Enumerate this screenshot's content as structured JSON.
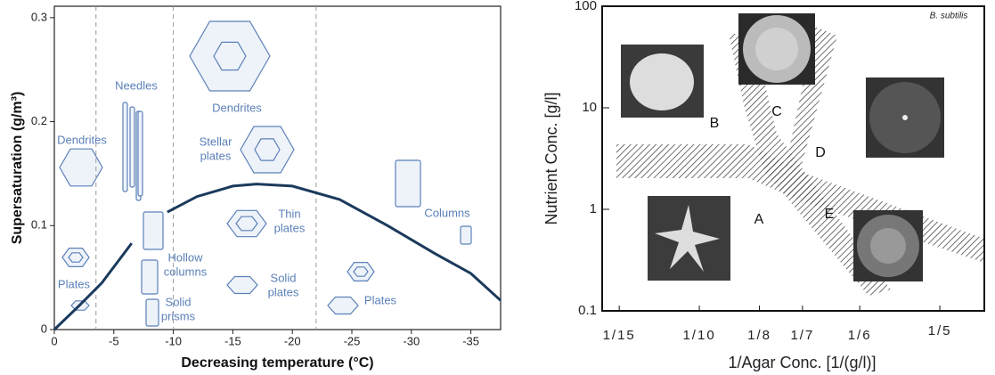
{
  "chart_data": [
    {
      "type": "line",
      "xlabel": "Decreasing temperature (°C)",
      "ylabel": "Supersaturation (g/m³)",
      "xlim": [
        0,
        -37.5
      ],
      "ylim": [
        0,
        0.311
      ],
      "xticks": [
        0,
        -5,
        -10,
        -15,
        -20,
        -25,
        -30,
        -35
      ],
      "yticks": [
        0,
        0.1,
        0.2,
        0.3
      ],
      "dividers": [
        -3.5,
        -10,
        -22
      ],
      "series": [
        {
          "color": "#1b3a5c",
          "x": [
            0,
            -2,
            -4,
            -6.5,
            -8,
            -9.5,
            -12,
            -15,
            -17,
            -20,
            -24,
            -28,
            -32,
            -35,
            -37.5
          ],
          "values": [
            0,
            0.022,
            0.045,
            0.083,
            null,
            0.113,
            0.128,
            0.138,
            0.14,
            0.138,
            0.125,
            0.1,
            0.073,
            0.054,
            0.028
          ]
        }
      ],
      "annotations": [
        [
          "Dendrites"
        ],
        [
          "Needles"
        ],
        [
          "Dendrites"
        ],
        [
          "Stellar",
          "plates"
        ],
        [
          "Plates"
        ],
        [
          "Hollow",
          "columns"
        ],
        [
          "Solid",
          "prisms"
        ],
        [
          "Thin",
          "plates"
        ],
        [
          "Solid",
          "plates"
        ],
        [
          "Columns"
        ],
        [
          "Plates"
        ]
      ],
      "annotation_color": "#5b80b8"
    },
    {
      "type": "morphology-diagram",
      "xlabel": "1/Agar  Conc.  [1/(g/l)]",
      "ylabel": "Nutrient  Conc.  [g/l]",
      "note": "B. subtilis",
      "xlim": [
        0.0596,
        0.2185
      ],
      "ylim": [
        0.1,
        100
      ],
      "log_y": true,
      "xticks": [
        {
          "value": 0.0667,
          "label": "1/15"
        },
        {
          "value": 0.1,
          "label": "1/10"
        },
        {
          "value": 0.125,
          "label": "1/8"
        },
        {
          "value": 0.1429,
          "label": "1/7"
        },
        {
          "value": 0.1667,
          "label": "1/6"
        },
        {
          "value": 0.2,
          "label": "1/5"
        }
      ],
      "yticks": [
        0.1,
        1,
        10,
        100
      ],
      "regions": [
        "A",
        "B",
        "C",
        "D",
        "E"
      ]
    }
  ]
}
